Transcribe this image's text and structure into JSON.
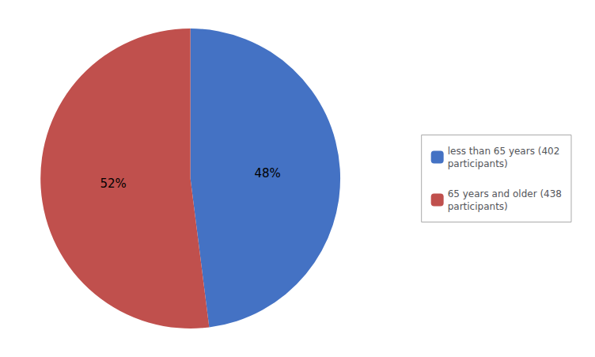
{
  "chart_data": {
    "type": "pie",
    "categories": [
      "less than 65 years (402\nparticipants)",
      "65 years and older (438\nparticipants)"
    ],
    "values": [
      48,
      52
    ],
    "value_labels": [
      "48%",
      "52%"
    ],
    "colors": [
      "#4472C4",
      "#C0504D"
    ],
    "data_labels": true,
    "legend": "right"
  }
}
